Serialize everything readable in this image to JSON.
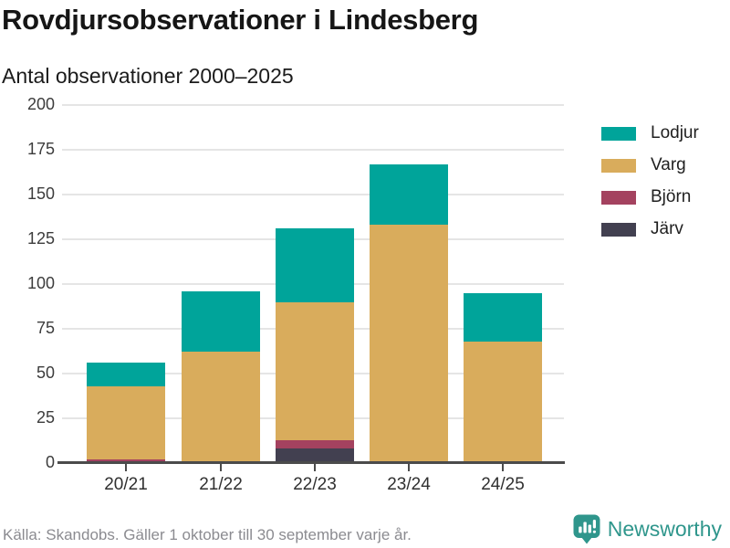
{
  "header": {
    "title": "Rovdjursobservationer i Lindesberg",
    "subtitle": "Antal observationer 2000–2025"
  },
  "footer": {
    "source": "Källa: Skandobs. Gäller 1 oktober till 30 september varje år."
  },
  "branding": {
    "name": "Newsworthy",
    "color": "#2f968c",
    "icon": "bar-chart-speech-bubble-icon"
  },
  "colors": {
    "axis": "#4b4b4b",
    "gridline": "#e5e5e5",
    "tick_label": "#3c3c3c",
    "footer_text": "#8b8b90"
  },
  "chart_data": {
    "type": "bar",
    "stacked": true,
    "title": "Rovdjursobservationer i Lindesberg",
    "subtitle": "Antal observationer 2000–2025",
    "xlabel": "",
    "ylabel": "Antal observationer",
    "categories": [
      "20/21",
      "21/22",
      "22/23",
      "23/24",
      "24/25"
    ],
    "series": [
      {
        "name": "Lodjur",
        "color": "#00a49a",
        "values": [
          13,
          34,
          41,
          34,
          27
        ]
      },
      {
        "name": "Varg",
        "color": "#d9ac5c",
        "values": [
          41,
          62,
          77,
          132,
          68
        ]
      },
      {
        "name": "Björn",
        "color": "#a4425f",
        "values": [
          2,
          0,
          5,
          1,
          0
        ]
      },
      {
        "name": "Järv",
        "color": "#424050",
        "values": [
          0,
          0,
          8,
          0,
          0
        ]
      }
    ],
    "stack_order_bottom_to_top": [
      "Järv",
      "Björn",
      "Varg",
      "Lodjur"
    ],
    "totals": [
      56,
      96,
      131,
      167,
      95
    ],
    "ylim": [
      0,
      200
    ],
    "yticks": [
      0,
      25,
      50,
      75,
      100,
      125,
      150,
      175,
      200
    ],
    "grid": true,
    "legend_position": "right"
  }
}
